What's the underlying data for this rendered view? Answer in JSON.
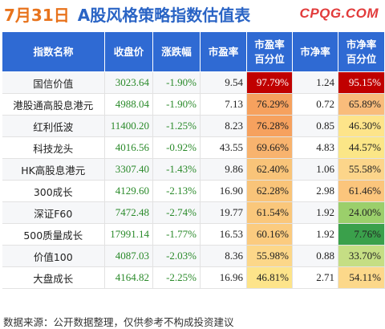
{
  "header": {
    "date": "7月31日",
    "title": "A股风格策略指数估值表",
    "site": "CPQG.COM"
  },
  "table": {
    "columns": [
      "指数名称",
      "收盘价",
      "涨跌幅",
      "市盈率",
      "市盈率百分位",
      "市净率",
      "市净率百分位"
    ],
    "rows": [
      {
        "name": "国信价值",
        "close": "3023.64",
        "change": "-1.90%",
        "pe": "9.54",
        "pe_pct": "97.79%",
        "pb": "1.24",
        "pb_pct": "95.15%",
        "pe_color": "#c00000",
        "pb_color": "#c00000",
        "pe_text": "#ffffff",
        "pb_text": "#ffffff"
      },
      {
        "name": "港股通高股息港元",
        "close": "4988.04",
        "change": "-1.90%",
        "pe": "7.13",
        "pe_pct": "76.29%",
        "pb": "0.72",
        "pb_pct": "65.89%",
        "pe_color": "#f6a15e",
        "pb_color": "#f9bc7b",
        "pe_text": "#222222",
        "pb_text": "#222222"
      },
      {
        "name": "红利低波",
        "close": "11400.20",
        "change": "-1.25%",
        "pe": "8.23",
        "pe_pct": "76.28%",
        "pb": "0.85",
        "pb_pct": "46.30%",
        "pe_color": "#f6a15e",
        "pb_color": "#fde48a",
        "pe_text": "#222222",
        "pb_text": "#222222"
      },
      {
        "name": "科技龙头",
        "close": "4016.56",
        "change": "-0.92%",
        "pe": "43.55",
        "pe_pct": "69.66%",
        "pb": "4.83",
        "pb_pct": "44.57%",
        "pe_color": "#f8b36e",
        "pb_color": "#fbe687",
        "pe_text": "#222222",
        "pb_text": "#222222"
      },
      {
        "name": "HK高股息港元",
        "close": "3307.40",
        "change": "-1.43%",
        "pe": "9.86",
        "pe_pct": "62.40%",
        "pb": "1.06",
        "pb_pct": "55.58%",
        "pe_color": "#f9c479",
        "pb_color": "#fcd58a",
        "pe_text": "#222222",
        "pb_text": "#222222"
      },
      {
        "name": "300成长",
        "close": "4129.60",
        "change": "-2.13%",
        "pe": "16.90",
        "pe_pct": "62.28%",
        "pb": "2.98",
        "pb_pct": "61.46%",
        "pe_color": "#f9c479",
        "pb_color": "#fbc57c",
        "pe_text": "#222222",
        "pb_text": "#222222"
      },
      {
        "name": "深证F60",
        "close": "7472.48",
        "change": "-2.74%",
        "pe": "19.77",
        "pe_pct": "61.54%",
        "pb": "1.92",
        "pb_pct": "24.00%",
        "pe_color": "#fac77b",
        "pb_color": "#9bcf6b",
        "pe_text": "#222222",
        "pb_text": "#222222"
      },
      {
        "name": "500质量成长",
        "close": "17991.14",
        "change": "-1.77%",
        "pe": "16.53",
        "pe_pct": "60.16%",
        "pb": "1.92",
        "pb_pct": "7.76%",
        "pe_color": "#fbcb7f",
        "pb_color": "#3aa04b",
        "pe_text": "#222222",
        "pb_text": "#222222"
      },
      {
        "name": "价值100",
        "close": "4087.03",
        "change": "-2.03%",
        "pe": "8.36",
        "pe_pct": "55.98%",
        "pb": "0.88",
        "pb_pct": "33.70%",
        "pe_color": "#fcd789",
        "pb_color": "#c5de84",
        "pe_text": "#222222",
        "pb_text": "#222222"
      },
      {
        "name": "大盘成长",
        "close": "4164.82",
        "change": "-2.25%",
        "pe": "16.96",
        "pe_pct": "46.81%",
        "pb": "2.71",
        "pb_pct": "54.11%",
        "pe_color": "#fde48a",
        "pb_color": "#fcd88a",
        "pe_text": "#222222",
        "pb_text": "#222222"
      }
    ]
  },
  "footer": {
    "text": "数据来源：公开数据整理，仅供参考不构成投资建议"
  },
  "colors": {
    "header_bg": "#2f6ad3",
    "date": "#e8731c",
    "title": "#2a64c5",
    "site": "#e23b3b",
    "negative": "#2a8a2a"
  }
}
